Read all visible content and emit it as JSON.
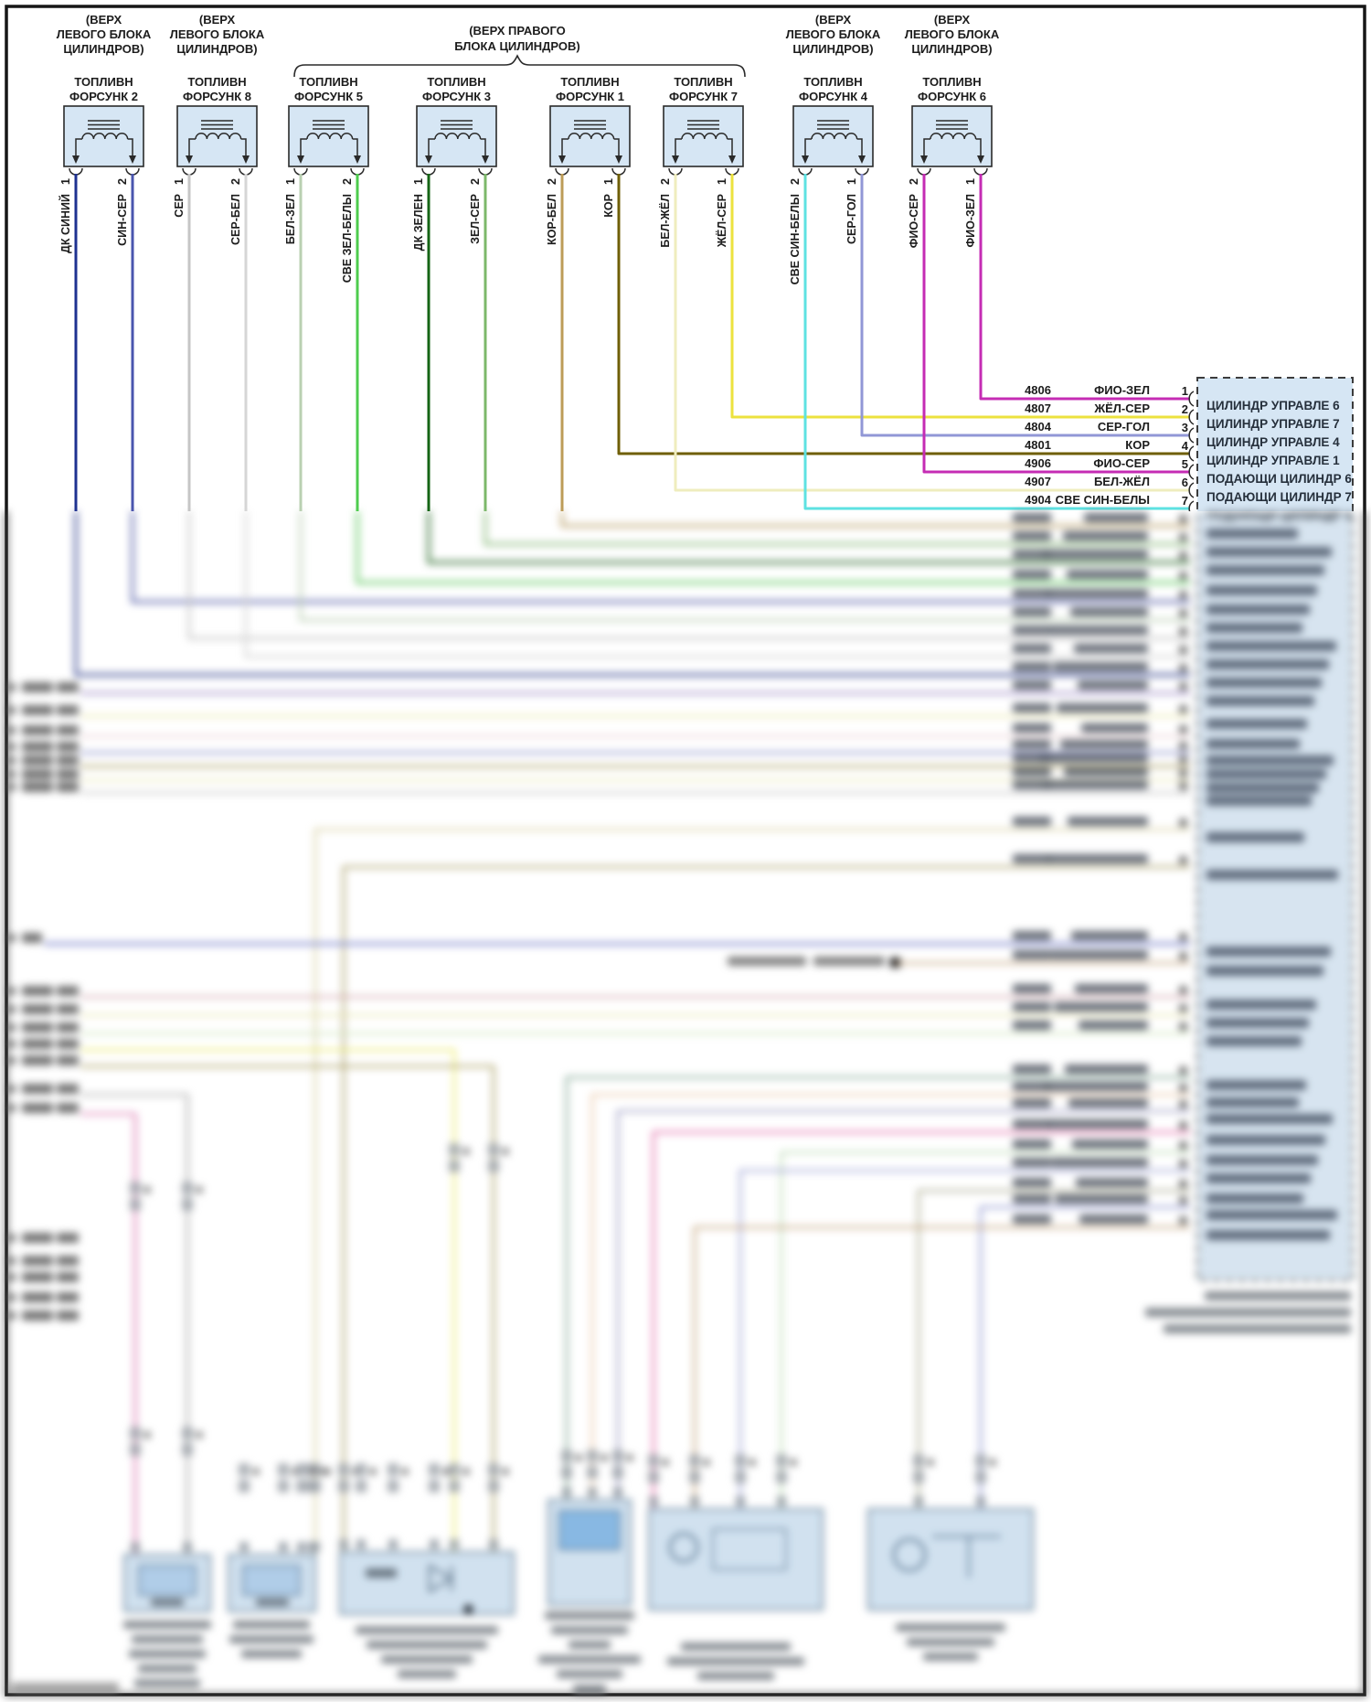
{
  "notes": {
    "left_bank_lines": [
      "(ВЕРХ",
      "ЛЕВОГО БЛОКА",
      "ЦИЛИНДРОВ)"
    ],
    "right_bank_lines": [
      "(ВЕРХ ПРАВОГО",
      "БЛОКА ЦИЛИНДРОВ)"
    ]
  },
  "injectors": [
    {
      "id": "inj-2",
      "title_lines": [
        "ТОПЛИВН",
        "ФОРСУНК 2"
      ],
      "bank_note": "left",
      "pins": [
        {
          "num": "1",
          "wire": "ДК СИНИЙ"
        },
        {
          "num": "2",
          "wire": "СИН-СЕР"
        }
      ]
    },
    {
      "id": "inj-8",
      "title_lines": [
        "ТОПЛИВН",
        "ФОРСУНК 8"
      ],
      "bank_note": "left",
      "pins": [
        {
          "num": "1",
          "wire": "СЕР"
        },
        {
          "num": "2",
          "wire": "СЕР-БЕЛ"
        }
      ]
    },
    {
      "id": "inj-5",
      "title_lines": [
        "ТОПЛИВН",
        "ФОРСУНК 5"
      ],
      "bank_note": "right-brace",
      "pins": [
        {
          "num": "1",
          "wire": "БЕЛ-ЗЕЛ"
        },
        {
          "num": "2",
          "wire": "СВЕ ЗЕЛ-БЕЛЫ"
        }
      ]
    },
    {
      "id": "inj-3",
      "title_lines": [
        "ТОПЛИВН",
        "ФОРСУНК 3"
      ],
      "bank_note": "right-brace",
      "pins": [
        {
          "num": "1",
          "wire": "ДК ЗЕЛЕН"
        },
        {
          "num": "2",
          "wire": "ЗЕЛ-СЕР"
        }
      ]
    },
    {
      "id": "inj-1",
      "title_lines": [
        "ТОПЛИВН",
        "ФОРСУНК 1"
      ],
      "bank_note": "right-brace",
      "pins": [
        {
          "num": "2",
          "wire": "КОР-БЕЛ"
        },
        {
          "num": "1",
          "wire": "КОР"
        }
      ]
    },
    {
      "id": "inj-7",
      "title_lines": [
        "ТОПЛИВН",
        "ФОРСУНК 7"
      ],
      "bank_note": "right-brace",
      "pins": [
        {
          "num": "2",
          "wire": "БЕЛ-ЖЁЛ"
        },
        {
          "num": "1",
          "wire": "ЖЁЛ-СЕР"
        }
      ]
    },
    {
      "id": "inj-4",
      "title_lines": [
        "ТОПЛИВН",
        "ФОРСУНК 4"
      ],
      "bank_note": "left",
      "pins": [
        {
          "num": "2",
          "wire": "СВЕ СИН-БЕЛЫ"
        },
        {
          "num": "1",
          "wire": "СЕР-ГОЛ"
        }
      ]
    },
    {
      "id": "inj-6",
      "title_lines": [
        "ТОПЛИВН",
        "ФОРСУНК 6"
      ],
      "bank_note": "left",
      "pins": [
        {
          "num": "2",
          "wire": "ФИО-СЕР"
        },
        {
          "num": "1",
          "wire": "ФИО-ЗЕЛ"
        }
      ]
    }
  ],
  "ecm_connector": {
    "rows": [
      {
        "circuit": "4806",
        "wire_color": "ФИО-ЗЕЛ",
        "pin": "1",
        "function": "ЦИЛИНДР УПРАВЛЕ 6"
      },
      {
        "circuit": "4807",
        "wire_color": "ЖЁЛ-СЕР",
        "pin": "2",
        "function": "ЦИЛИНДР УПРАВЛЕ 7"
      },
      {
        "circuit": "4804",
        "wire_color": "СЕР-ГОЛ",
        "pin": "3",
        "function": "ЦИЛИНДР УПРАВЛЕ 4"
      },
      {
        "circuit": "4801",
        "wire_color": "КОР",
        "pin": "4",
        "function": "ЦИЛИНДР УПРАВЛЕ 1"
      },
      {
        "circuit": "4906",
        "wire_color": "ФИО-СЕР",
        "pin": "5",
        "function": "ПОДАЮЩИ ЦИЛИНДР 6"
      },
      {
        "circuit": "4907",
        "wire_color": "БЕЛ-ЖЁЛ",
        "pin": "6",
        "function": "ПОДАЮЩИ ЦИЛИНДР 7"
      },
      {
        "circuit": "4904",
        "wire_color": "СВЕ СИН-БЕЛЫ",
        "pin": "7",
        "function": "ПОДАЮЩИ ЦИЛИНДР 4"
      }
    ]
  },
  "wire_colors": {
    "ДК СИНИЙ": "#1e3191",
    "СИН-СЕР": "#4a55ae",
    "СЕР": "#c6c6c6",
    "СЕР-БЕЛ": "#d6d6d6",
    "БЕЛ-ЗЕЛ": "#b9d0b2",
    "СВЕ ЗЕЛ-БЕЛЫ": "#4ecc4e",
    "ДК ЗЕЛЕН": "#156515",
    "ЗЕЛ-СЕР": "#7cb86a",
    "КОР-БЕЛ": "#bd9c58",
    "КОР": "#6f5f06",
    "БЕЛ-ЖЁЛ": "#efedbe",
    "ЖЁЛ-СЕР": "#ece23e",
    "СВЕ СИН-БЕЛЫ": "#5ee2e2",
    "СЕР-ГОЛ": "#9197d6",
    "ФИО-СЕР": "#c52cb4",
    "ФИО-ЗЕЛ": "#c52cb4",
    "block_fill": "#d6e6f4",
    "frame": "#161616"
  }
}
